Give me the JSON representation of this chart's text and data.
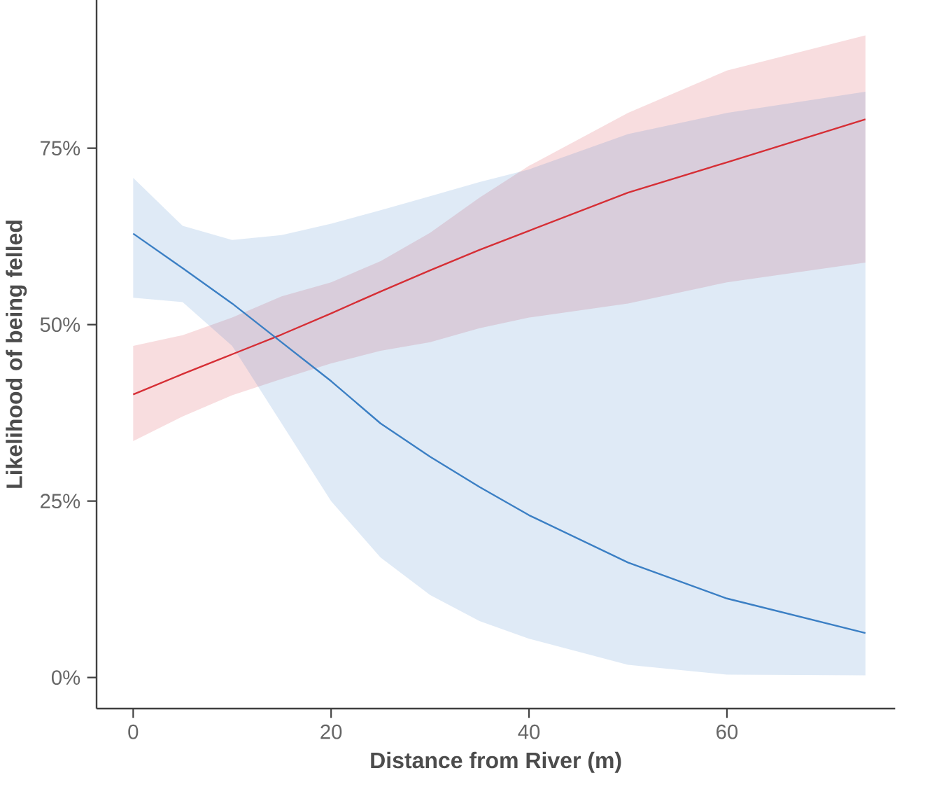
{
  "chart_data": {
    "type": "line",
    "xlabel": "Distance from River (m)",
    "ylabel": "Likelihood of being felled",
    "xlim": [
      -3.7,
      77
    ],
    "ylim": [
      -4.4,
      96
    ],
    "xticks": [
      0,
      20,
      40,
      60
    ],
    "yticks": [
      {
        "value": 0,
        "label": "0%"
      },
      {
        "value": 25,
        "label": "25%"
      },
      {
        "value": 50,
        "label": "50%"
      },
      {
        "value": 75,
        "label": "75%"
      }
    ],
    "series": [
      {
        "color": "#d62e35",
        "x": [
          0,
          5,
          10,
          15,
          20,
          25,
          30,
          35,
          40,
          50,
          60,
          74
        ],
        "values": [
          40.1,
          43,
          45.8,
          48.6,
          51.6,
          54.7,
          57.7,
          60.6,
          63.3,
          68.7,
          73,
          79.1
        ],
        "lower": [
          33.5,
          37,
          40,
          42.3,
          44.5,
          46.3,
          47.5,
          49.5,
          51,
          53,
          56,
          58.8
        ],
        "upper": [
          47,
          48.5,
          51,
          54,
          56,
          59,
          63,
          68,
          72.5,
          80,
          86,
          91
        ]
      },
      {
        "color": "#3b7fc4",
        "x": [
          0,
          5,
          10,
          15,
          20,
          25,
          30,
          35,
          40,
          50,
          60,
          74
        ],
        "values": [
          62.9,
          58,
          53,
          47.5,
          42,
          36,
          31.3,
          27,
          23,
          16.3,
          11.2,
          6.3
        ],
        "lower": [
          53.8,
          53.2,
          47,
          36,
          25,
          17,
          11.7,
          8,
          5.5,
          1.8,
          0.4,
          0.3
        ],
        "upper": [
          70.8,
          64,
          62,
          62.7,
          64.3,
          66.2,
          68.2,
          70.2,
          72,
          77,
          80,
          83
        ]
      }
    ]
  }
}
